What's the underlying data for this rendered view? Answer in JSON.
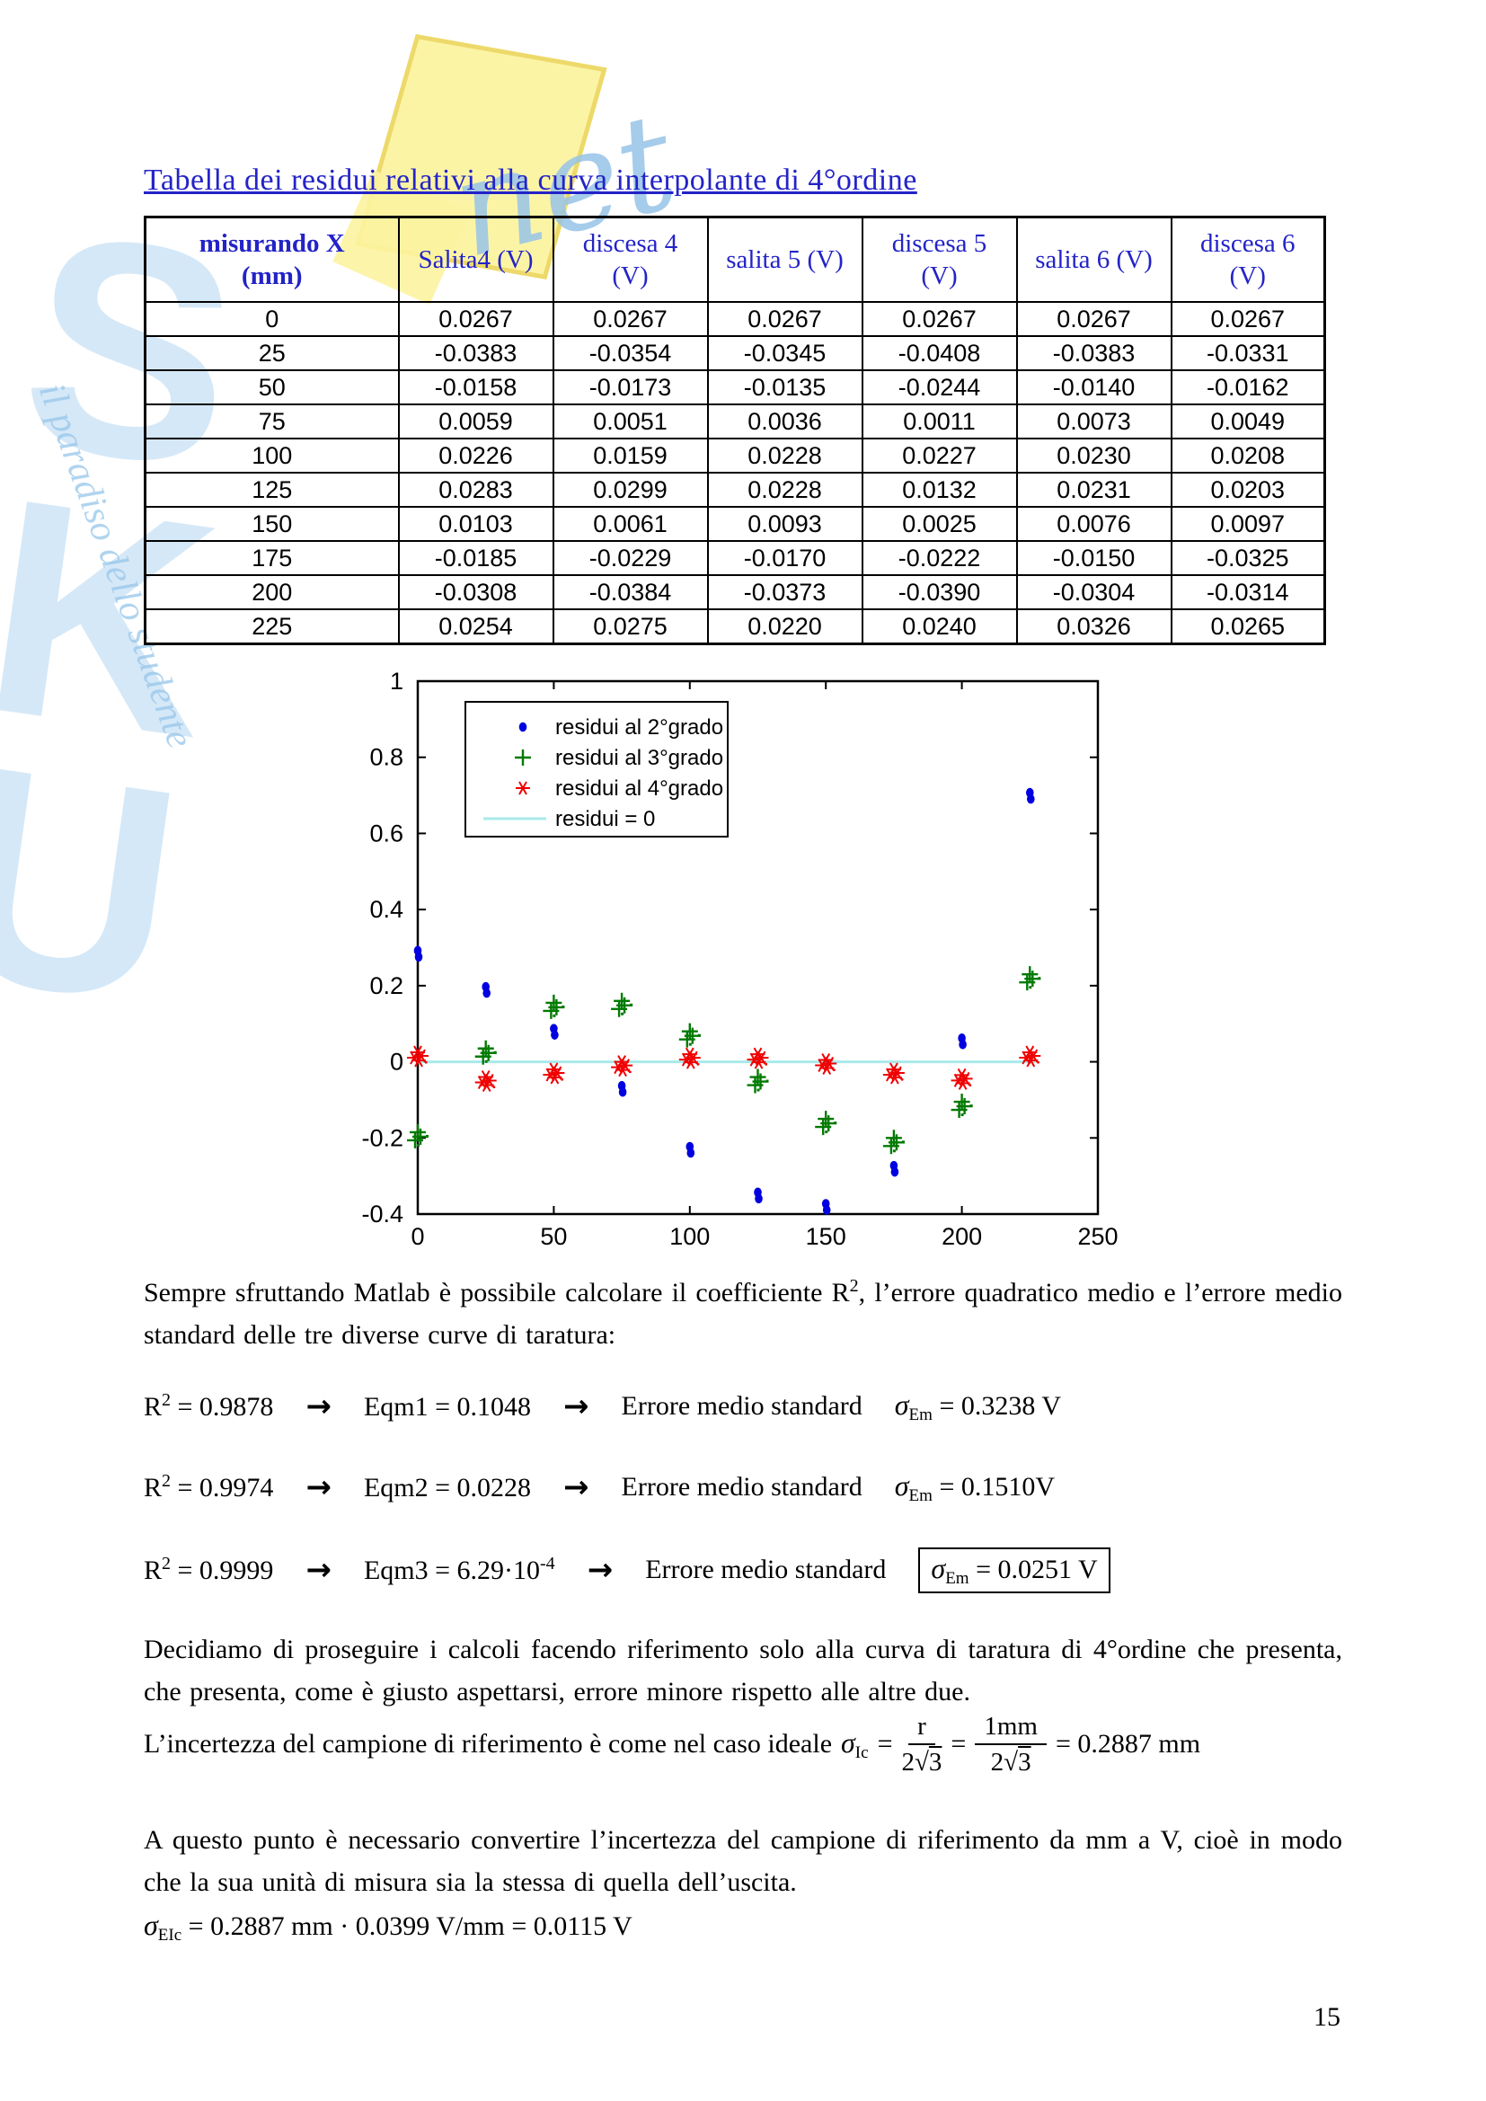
{
  "title": "Tabella dei residui relativi alla curva interpolante di 4°ordine",
  "watermark": {
    "letters": "SKU",
    "logo_text": "net",
    "tagline": "il paradiso dello studente"
  },
  "table": {
    "headers": [
      {
        "line1": "misurando X",
        "line2": "(mm)",
        "bold": true
      },
      {
        "line1": "Salita4 (V)"
      },
      {
        "line1": "discesa 4",
        "line2": "(V)"
      },
      {
        "line1": "salita 5 (V)"
      },
      {
        "line1": "discesa 5",
        "line2": "(V)"
      },
      {
        "line1": "salita 6 (V)"
      },
      {
        "line1": "discesa 6",
        "line2": "(V)"
      }
    ],
    "rows": [
      [
        "0",
        "0.0267",
        "0.0267",
        "0.0267",
        "0.0267",
        "0.0267",
        "0.0267"
      ],
      [
        "25",
        "-0.0383",
        "-0.0354",
        "-0.0345",
        "-0.0408",
        "-0.0383",
        "-0.0331"
      ],
      [
        "50",
        "-0.0158",
        "-0.0173",
        "-0.0135",
        "-0.0244",
        "-0.0140",
        "-0.0162"
      ],
      [
        "75",
        "0.0059",
        "0.0051",
        "0.0036",
        "0.0011",
        "0.0073",
        "0.0049"
      ],
      [
        "100",
        "0.0226",
        "0.0159",
        "0.0228",
        "0.0227",
        "0.0230",
        "0.0208"
      ],
      [
        "125",
        "0.0283",
        "0.0299",
        "0.0228",
        "0.0132",
        "0.0231",
        "0.0203"
      ],
      [
        "150",
        "0.0103",
        "0.0061",
        "0.0093",
        "0.0025",
        "0.0076",
        "0.0097"
      ],
      [
        "175",
        "-0.0185",
        "-0.0229",
        "-0.0170",
        "-0.0222",
        "-0.0150",
        "-0.0325"
      ],
      [
        "200",
        "-0.0308",
        "-0.0384",
        "-0.0373",
        "-0.0390",
        "-0.0304",
        "-0.0314"
      ],
      [
        "225",
        "0.0254",
        "0.0275",
        "0.0220",
        "0.0240",
        "0.0326",
        "0.0265"
      ]
    ]
  },
  "chart_data": {
    "type": "scatter",
    "title": "",
    "xlabel": "",
    "ylabel": "",
    "xlim": [
      0,
      250
    ],
    "ylim": [
      -0.4,
      1
    ],
    "xticks": [
      0,
      50,
      100,
      150,
      200,
      250
    ],
    "yticks": [
      1,
      0.8,
      0.6,
      0.4,
      0.2,
      0,
      -0.2,
      -0.4
    ],
    "grid": false,
    "legend_position": "top-left",
    "x": [
      0,
      25,
      50,
      75,
      100,
      125,
      150,
      175,
      200,
      225
    ],
    "series": [
      {
        "name": "residui al 2°grado",
        "marker": "dot",
        "color": "#0000e0",
        "values": [
          0.285,
          0.19,
          0.08,
          -0.07,
          -0.23,
          -0.35,
          -0.38,
          -0.28,
          0.055,
          0.7
        ]
      },
      {
        "name": "residui al 3°grado",
        "marker": "plus",
        "color": "#007a00",
        "values": [
          -0.185,
          0.035,
          0.155,
          0.16,
          0.08,
          -0.04,
          -0.15,
          -0.2,
          -0.105,
          0.23
        ]
      },
      {
        "name": "residui al 4°grado",
        "marker": "star",
        "color": "#f00000",
        "values": [
          0.025,
          -0.04,
          -0.02,
          0.0,
          0.02,
          0.02,
          0.005,
          -0.02,
          -0.035,
          0.025
        ]
      }
    ],
    "zero_line": {
      "name": "residui = 0",
      "color": "#a9e9ea",
      "y": 0,
      "x_range": [
        0,
        227
      ]
    }
  },
  "intro": {
    "a": "Sempre sfruttando Matlab è possibile calcolare il coefficiente R",
    "sup": "2",
    "b": ", l’errore quadratico medio e l’errore medio standard delle tre diverse curve di taratura:"
  },
  "formulas": {
    "r_base": "R",
    "r_sup": "2",
    "arrow": "→",
    "errore_label": "Errore medio standard",
    "sigma": "σ",
    "sigma_sub": "Em",
    "rows": [
      {
        "r2_eq": "= 0.9878",
        "eqm": "Eqm1 = 0.1048",
        "eqm_sup": "",
        "sigma_eq": "= 0.3238 V",
        "boxed": false
      },
      {
        "r2_eq": "= 0.9974",
        "eqm": "Eqm2 = 0.0228",
        "eqm_sup": "",
        "sigma_eq": "= 0.1510V",
        "boxed": false
      },
      {
        "r2_eq": "= 0.9999",
        "eqm": "Eqm3 = 6.29·10",
        "eqm_sup": "-4",
        "sigma_eq": "= 0.0251 V",
        "boxed": true
      }
    ]
  },
  "decision": "Decidiamo di proseguire i calcoli facendo riferimento solo alla curva di taratura di 4°ordine che presenta, che presenta, come è giusto aspettarsi, errore minore rispetto alle altre due.",
  "uncertainty": {
    "prefix": "L’incertezza del campione di riferimento è come nel caso ideale",
    "sigma": "σ",
    "sub": "Ic",
    "eq": "=",
    "frac1_num": "r",
    "frac2_num": "1mm",
    "den_pre": "2√",
    "den_root": "3",
    "result": "= 0.2887 mm"
  },
  "conversion": "A questo punto è necessario convertire l’incertezza del campione di riferimento da mm a V, cioè in modo che la sua unità di misura sia la stessa di quella dell’uscita.",
  "sigma_conversion": {
    "sigma": "σ",
    "sub": "EIc",
    "text": "= 0.2887 mm · 0.0399 V/mm = 0.0115 V"
  },
  "page": {
    "number": "15"
  },
  "colors": {
    "accent_blue": "#2323c8",
    "marker_blue": "#0000e0",
    "marker_green": "#007a00",
    "marker_red": "#f00000",
    "zero_line_cyan": "#a9e9ea",
    "watermark_blue": "#9bc8eb",
    "watermark_yellow": "#fcf3a0"
  }
}
